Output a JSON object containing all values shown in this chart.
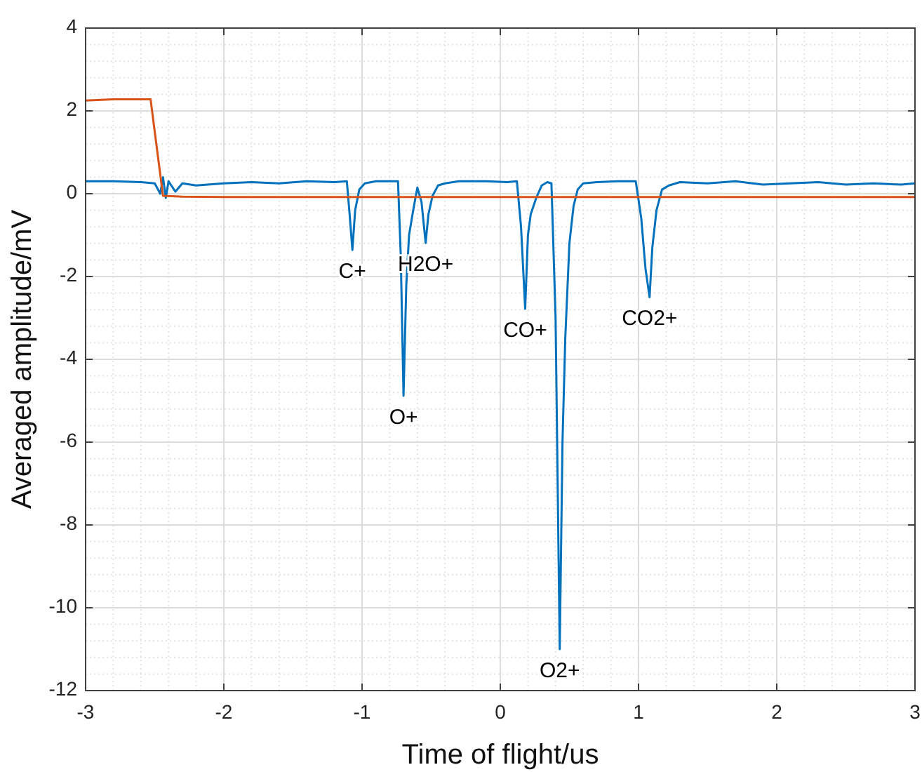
{
  "chart_data": {
    "type": "line",
    "xlabel": "Time of flight/us",
    "ylabel": "Averaged amplitude/mV",
    "xlim": [
      -3,
      3
    ],
    "ylim": [
      -12,
      4
    ],
    "xticks": [
      -3,
      -2,
      -1,
      0,
      1,
      2,
      3
    ],
    "yticks": [
      -12,
      -10,
      -8,
      -6,
      -4,
      -2,
      0,
      2,
      4
    ],
    "grid": true,
    "line_style": "solid",
    "marker": "none",
    "series": [
      {
        "color": "#0072bd",
        "x": [
          -3,
          -2.8,
          -2.6,
          -2.5,
          -2.46,
          -2.44,
          -2.42,
          -2.4,
          -2.35,
          -2.3,
          -2.2,
          -2.0,
          -1.8,
          -1.6,
          -1.4,
          -1.2,
          -1.11,
          -1.09,
          -1.07,
          -1.05,
          -1.02,
          -0.98,
          -0.9,
          -0.8,
          -0.74,
          -0.72,
          -0.7,
          -0.68,
          -0.66,
          -0.63,
          -0.6,
          -0.57,
          -0.54,
          -0.52,
          -0.49,
          -0.45,
          -0.4,
          -0.3,
          -0.1,
          0.05,
          0.12,
          0.15,
          0.18,
          0.2,
          0.22,
          0.26,
          0.3,
          0.34,
          0.37,
          0.4,
          0.43,
          0.45,
          0.47,
          0.5,
          0.53,
          0.56,
          0.6,
          0.7,
          0.85,
          0.98,
          1.02,
          1.05,
          1.08,
          1.1,
          1.13,
          1.17,
          1.22,
          1.3,
          1.5,
          1.7,
          1.9,
          2.1,
          2.3,
          2.5,
          2.7,
          2.9,
          3
        ],
        "values": [
          0.3,
          0.3,
          0.28,
          0.25,
          0.0,
          0.4,
          -0.1,
          0.3,
          0.05,
          0.25,
          0.2,
          0.25,
          0.28,
          0.25,
          0.3,
          0.28,
          0.3,
          -0.5,
          -1.36,
          -0.4,
          0.1,
          0.25,
          0.3,
          0.3,
          0.3,
          -1.5,
          -4.88,
          -2.2,
          -1.0,
          -0.4,
          0.15,
          -0.2,
          -1.19,
          -0.5,
          -0.05,
          0.2,
          0.25,
          0.3,
          0.3,
          0.28,
          0.3,
          -0.8,
          -2.78,
          -1.0,
          -0.5,
          -0.1,
          0.2,
          0.28,
          0.25,
          -3.0,
          -11.0,
          -6.0,
          -3.5,
          -1.2,
          -0.3,
          0.1,
          0.25,
          0.28,
          0.3,
          0.3,
          -0.6,
          -1.8,
          -2.5,
          -1.3,
          -0.4,
          0.1,
          0.2,
          0.28,
          0.25,
          0.3,
          0.22,
          0.25,
          0.28,
          0.22,
          0.25,
          0.22,
          0.25
        ]
      },
      {
        "color": "#d95319",
        "x": [
          -3,
          -2.8,
          -2.6,
          -2.53,
          -2.44,
          -2.3,
          -2.0,
          -1.0,
          0,
          1,
          2,
          3
        ],
        "values": [
          2.25,
          2.28,
          2.28,
          2.28,
          -0.05,
          -0.07,
          -0.08,
          -0.08,
          -0.08,
          -0.08,
          -0.08,
          -0.08
        ]
      }
    ],
    "annotations": [
      {
        "text": "C+",
        "x": -1.07,
        "y": -1.36
      },
      {
        "text": "O+",
        "x": -0.7,
        "y": -4.88
      },
      {
        "text": "H2O+",
        "x": -0.54,
        "y": -1.19
      },
      {
        "text": "CO+",
        "x": 0.18,
        "y": -2.78
      },
      {
        "text": "O2+",
        "x": 0.43,
        "y": -11.0
      },
      {
        "text": "CO2+",
        "x": 1.08,
        "y": -2.5
      }
    ]
  }
}
